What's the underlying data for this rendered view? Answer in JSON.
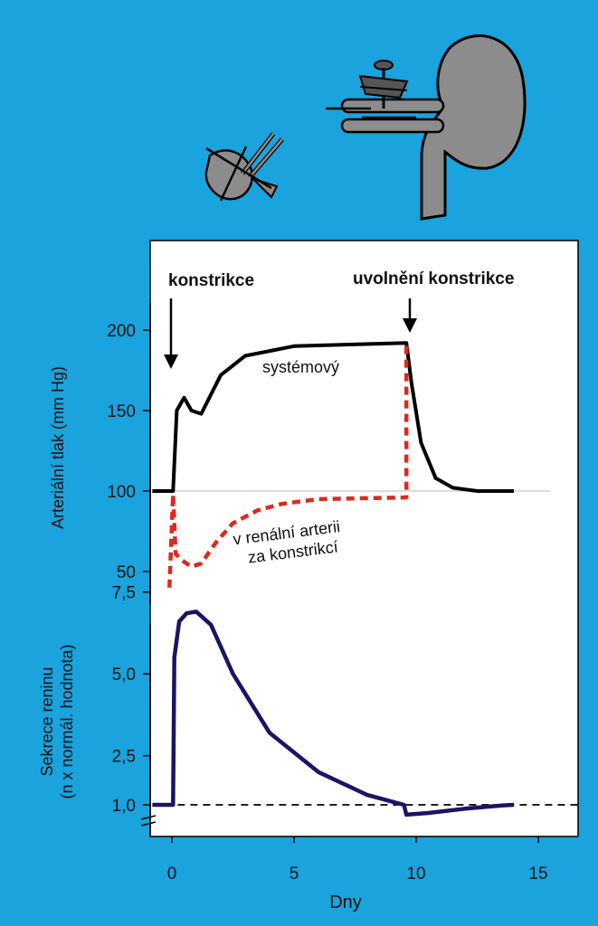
{
  "colors": {
    "background": "#1aa3dc",
    "plot_bg": "#ffffff",
    "systemic": "#000000",
    "renal": "#d92b1f",
    "renin": "#1b1464",
    "baseline": "#000000",
    "organ": "#8c8c8c"
  },
  "icons": [
    "kidney-icon",
    "clamped-artery-icon",
    "clamp-screw-icon",
    "removed-kidney-icon"
  ],
  "annotations": {
    "constriction": "konstrikce",
    "release": "uvolnění konstrikce",
    "systemic_label": "systémový",
    "renal_label_1": "v renální arterii",
    "renal_label_2": "za konstrikcí"
  },
  "chart_data": [
    {
      "type": "line",
      "ylabel": "Arteriální tlak (mm Hg)",
      "ylim": [
        40,
        220
      ],
      "yticks": [
        "50",
        "100",
        "150",
        "200"
      ],
      "yticks_values": [
        50,
        100,
        150,
        200
      ],
      "reference_line": 100,
      "series": [
        {
          "name": "systémový",
          "x": [
            -0.8,
            0.05,
            0.2,
            0.5,
            0.8,
            1.2,
            2.0,
            3.0,
            5.0,
            9.6,
            9.8,
            10.2,
            10.8,
            11.5,
            12.5,
            14.0
          ],
          "y": [
            100,
            100,
            150,
            158,
            150,
            148,
            172,
            184,
            190,
            192,
            168,
            130,
            108,
            102,
            100,
            100
          ]
        },
        {
          "name": "v renální arterii za konstrikcí",
          "x": [
            -0.1,
            0.05,
            0.15,
            0.5,
            0.8,
            1.2,
            1.8,
            2.5,
            3.5,
            4.5,
            6.0,
            9.6,
            9.6
          ],
          "y": [
            40,
            98,
            61,
            56,
            53,
            55,
            68,
            80,
            88,
            92,
            95,
            96,
            192
          ]
        }
      ]
    },
    {
      "type": "line",
      "xlabel": "Dny",
      "ylabel_1": "Sekrece reninu",
      "ylabel_2": "(n x normál. hodnota)",
      "xlim": [
        -0.8,
        16.5
      ],
      "ylim": [
        0.5,
        8
      ],
      "xticks": [
        "0",
        "5",
        "10",
        "15"
      ],
      "xticks_values": [
        0,
        5,
        10,
        15
      ],
      "yticks": [
        "1,0",
        "2,5",
        "5,0",
        "7,5"
      ],
      "yticks_values": [
        1,
        2.5,
        5,
        7.5
      ],
      "reference_line": 1,
      "series": [
        {
          "name": "Sekrece reninu",
          "x": [
            -0.8,
            0.05,
            0.1,
            0.3,
            0.6,
            1.0,
            1.6,
            2.5,
            4.0,
            6.0,
            8.0,
            9.5,
            9.6,
            10.5,
            12.0,
            13.5,
            14.0
          ],
          "y": [
            1.0,
            1.0,
            5.5,
            6.6,
            6.85,
            6.9,
            6.5,
            5.0,
            3.2,
            2.0,
            1.3,
            1.0,
            0.7,
            0.75,
            0.88,
            0.98,
            1.0
          ]
        }
      ]
    }
  ]
}
